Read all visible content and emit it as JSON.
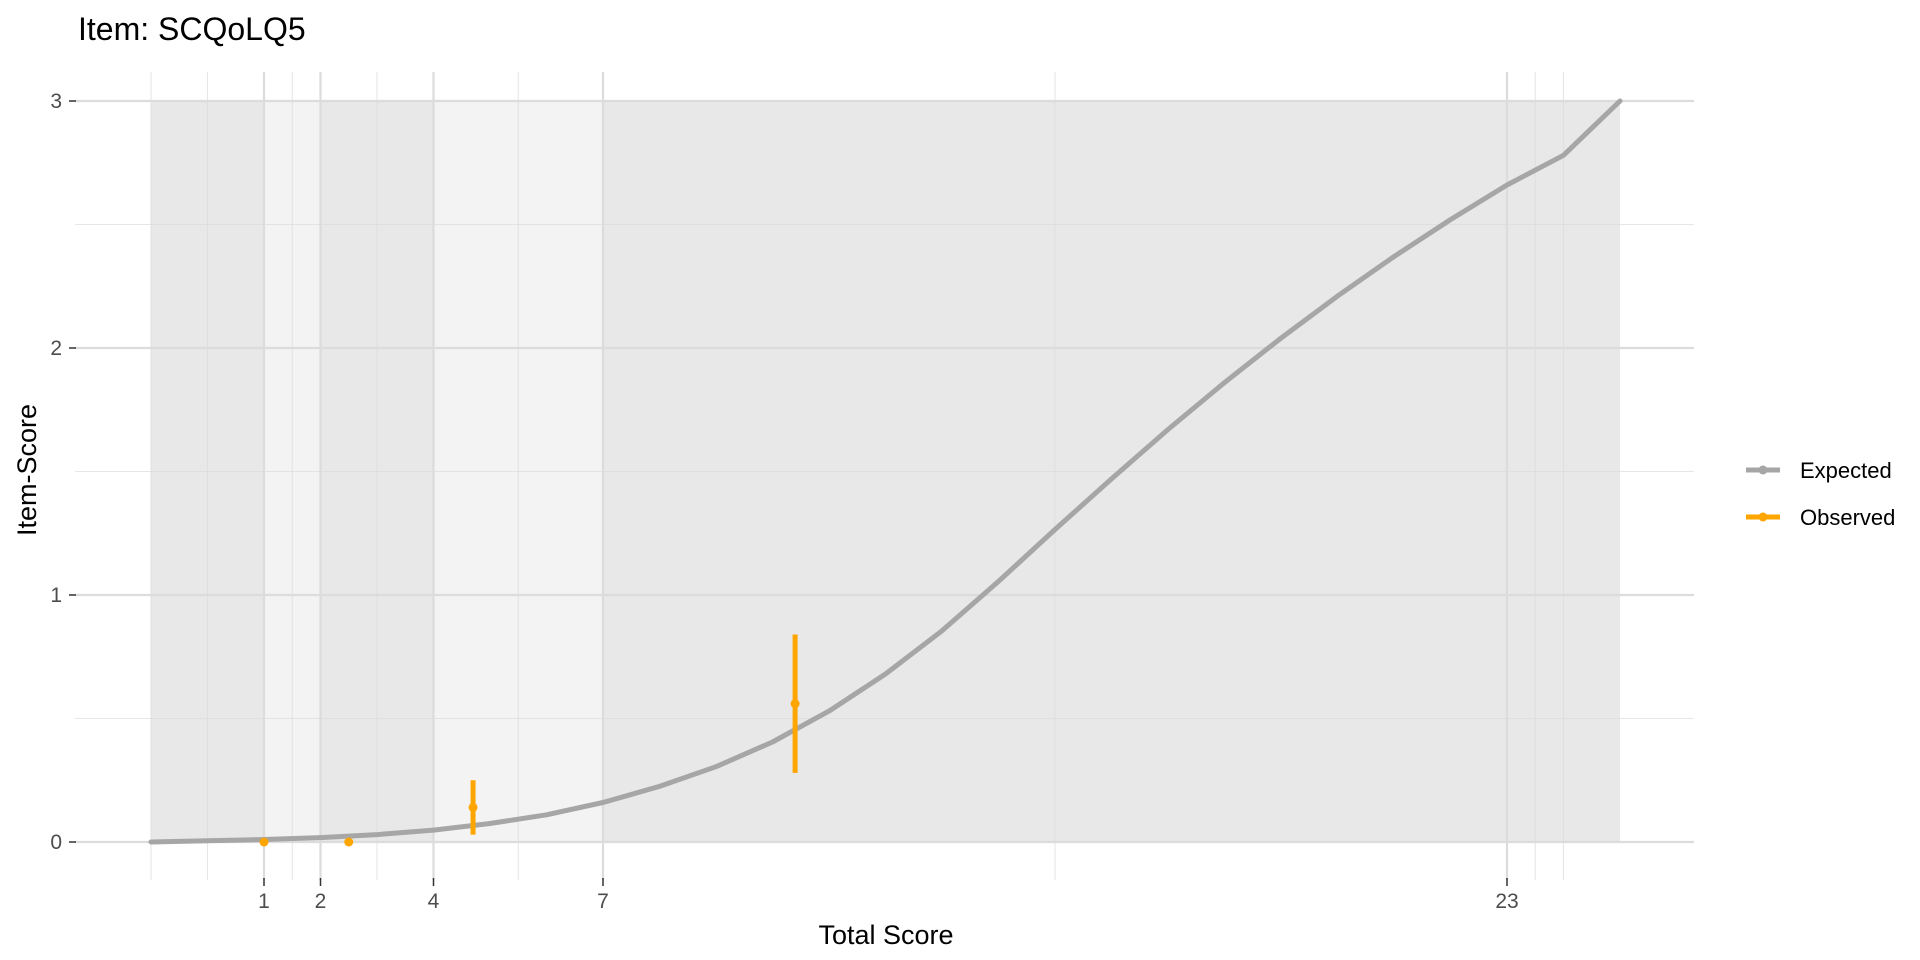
{
  "chart_data": {
    "type": "line",
    "title": "Item: SCQoLQ5",
    "xlabel": "Total Score",
    "ylabel": "Item-Score",
    "xlim": [
      -1,
      25
    ],
    "ylim": [
      0,
      3
    ],
    "grid": true,
    "x_ticks": [
      1,
      2,
      4,
      7,
      23
    ],
    "x_tick_labels": [
      "1",
      "2",
      "4",
      "7",
      "23"
    ],
    "y_ticks": [
      0,
      1,
      2,
      3
    ],
    "y_tick_labels": [
      "0",
      "1",
      "2",
      "3"
    ],
    "group_bands": [
      {
        "from": -1,
        "to": 2,
        "shade": "dark"
      },
      {
        "from": 2,
        "to": 4,
        "shade": "dark"
      },
      {
        "from": 4,
        "to": 7,
        "shade": "light"
      },
      {
        "from": 7,
        "to": 25,
        "shade": "dark"
      }
    ],
    "light_band_extra": {
      "from": 1,
      "to": 2
    },
    "legend": {
      "position": "right",
      "entries": [
        "Expected",
        "Observed"
      ]
    },
    "colors": {
      "expected": "#a6a6a6",
      "observed": "#ffa500",
      "band_dark": "#e8e8e8",
      "band_light": "#f3f3f3",
      "grid": "#dcdcdc"
    },
    "series": [
      {
        "name": "Expected",
        "x": [
          -1,
          0,
          1,
          2,
          3,
          4,
          5,
          6,
          7,
          8,
          9,
          10,
          11,
          12,
          13,
          14,
          15,
          16,
          17,
          18,
          19,
          20,
          21,
          22,
          23,
          24,
          25
        ],
        "y": [
          0.0,
          0.005,
          0.01,
          0.018,
          0.03,
          0.048,
          0.075,
          0.11,
          0.16,
          0.225,
          0.305,
          0.405,
          0.53,
          0.68,
          0.855,
          1.055,
          1.265,
          1.47,
          1.67,
          1.86,
          2.04,
          2.21,
          2.37,
          2.52,
          2.66,
          2.78,
          3.0
        ]
      },
      {
        "name": "Observed",
        "x": [
          1,
          2.5,
          4.7,
          10.4
        ],
        "y": [
          0.0,
          0.0,
          0.14,
          0.56
        ],
        "lower": [
          0.0,
          0.0,
          0.03,
          0.28
        ],
        "upper": [
          0.0,
          0.0,
          0.25,
          0.84
        ]
      }
    ]
  }
}
